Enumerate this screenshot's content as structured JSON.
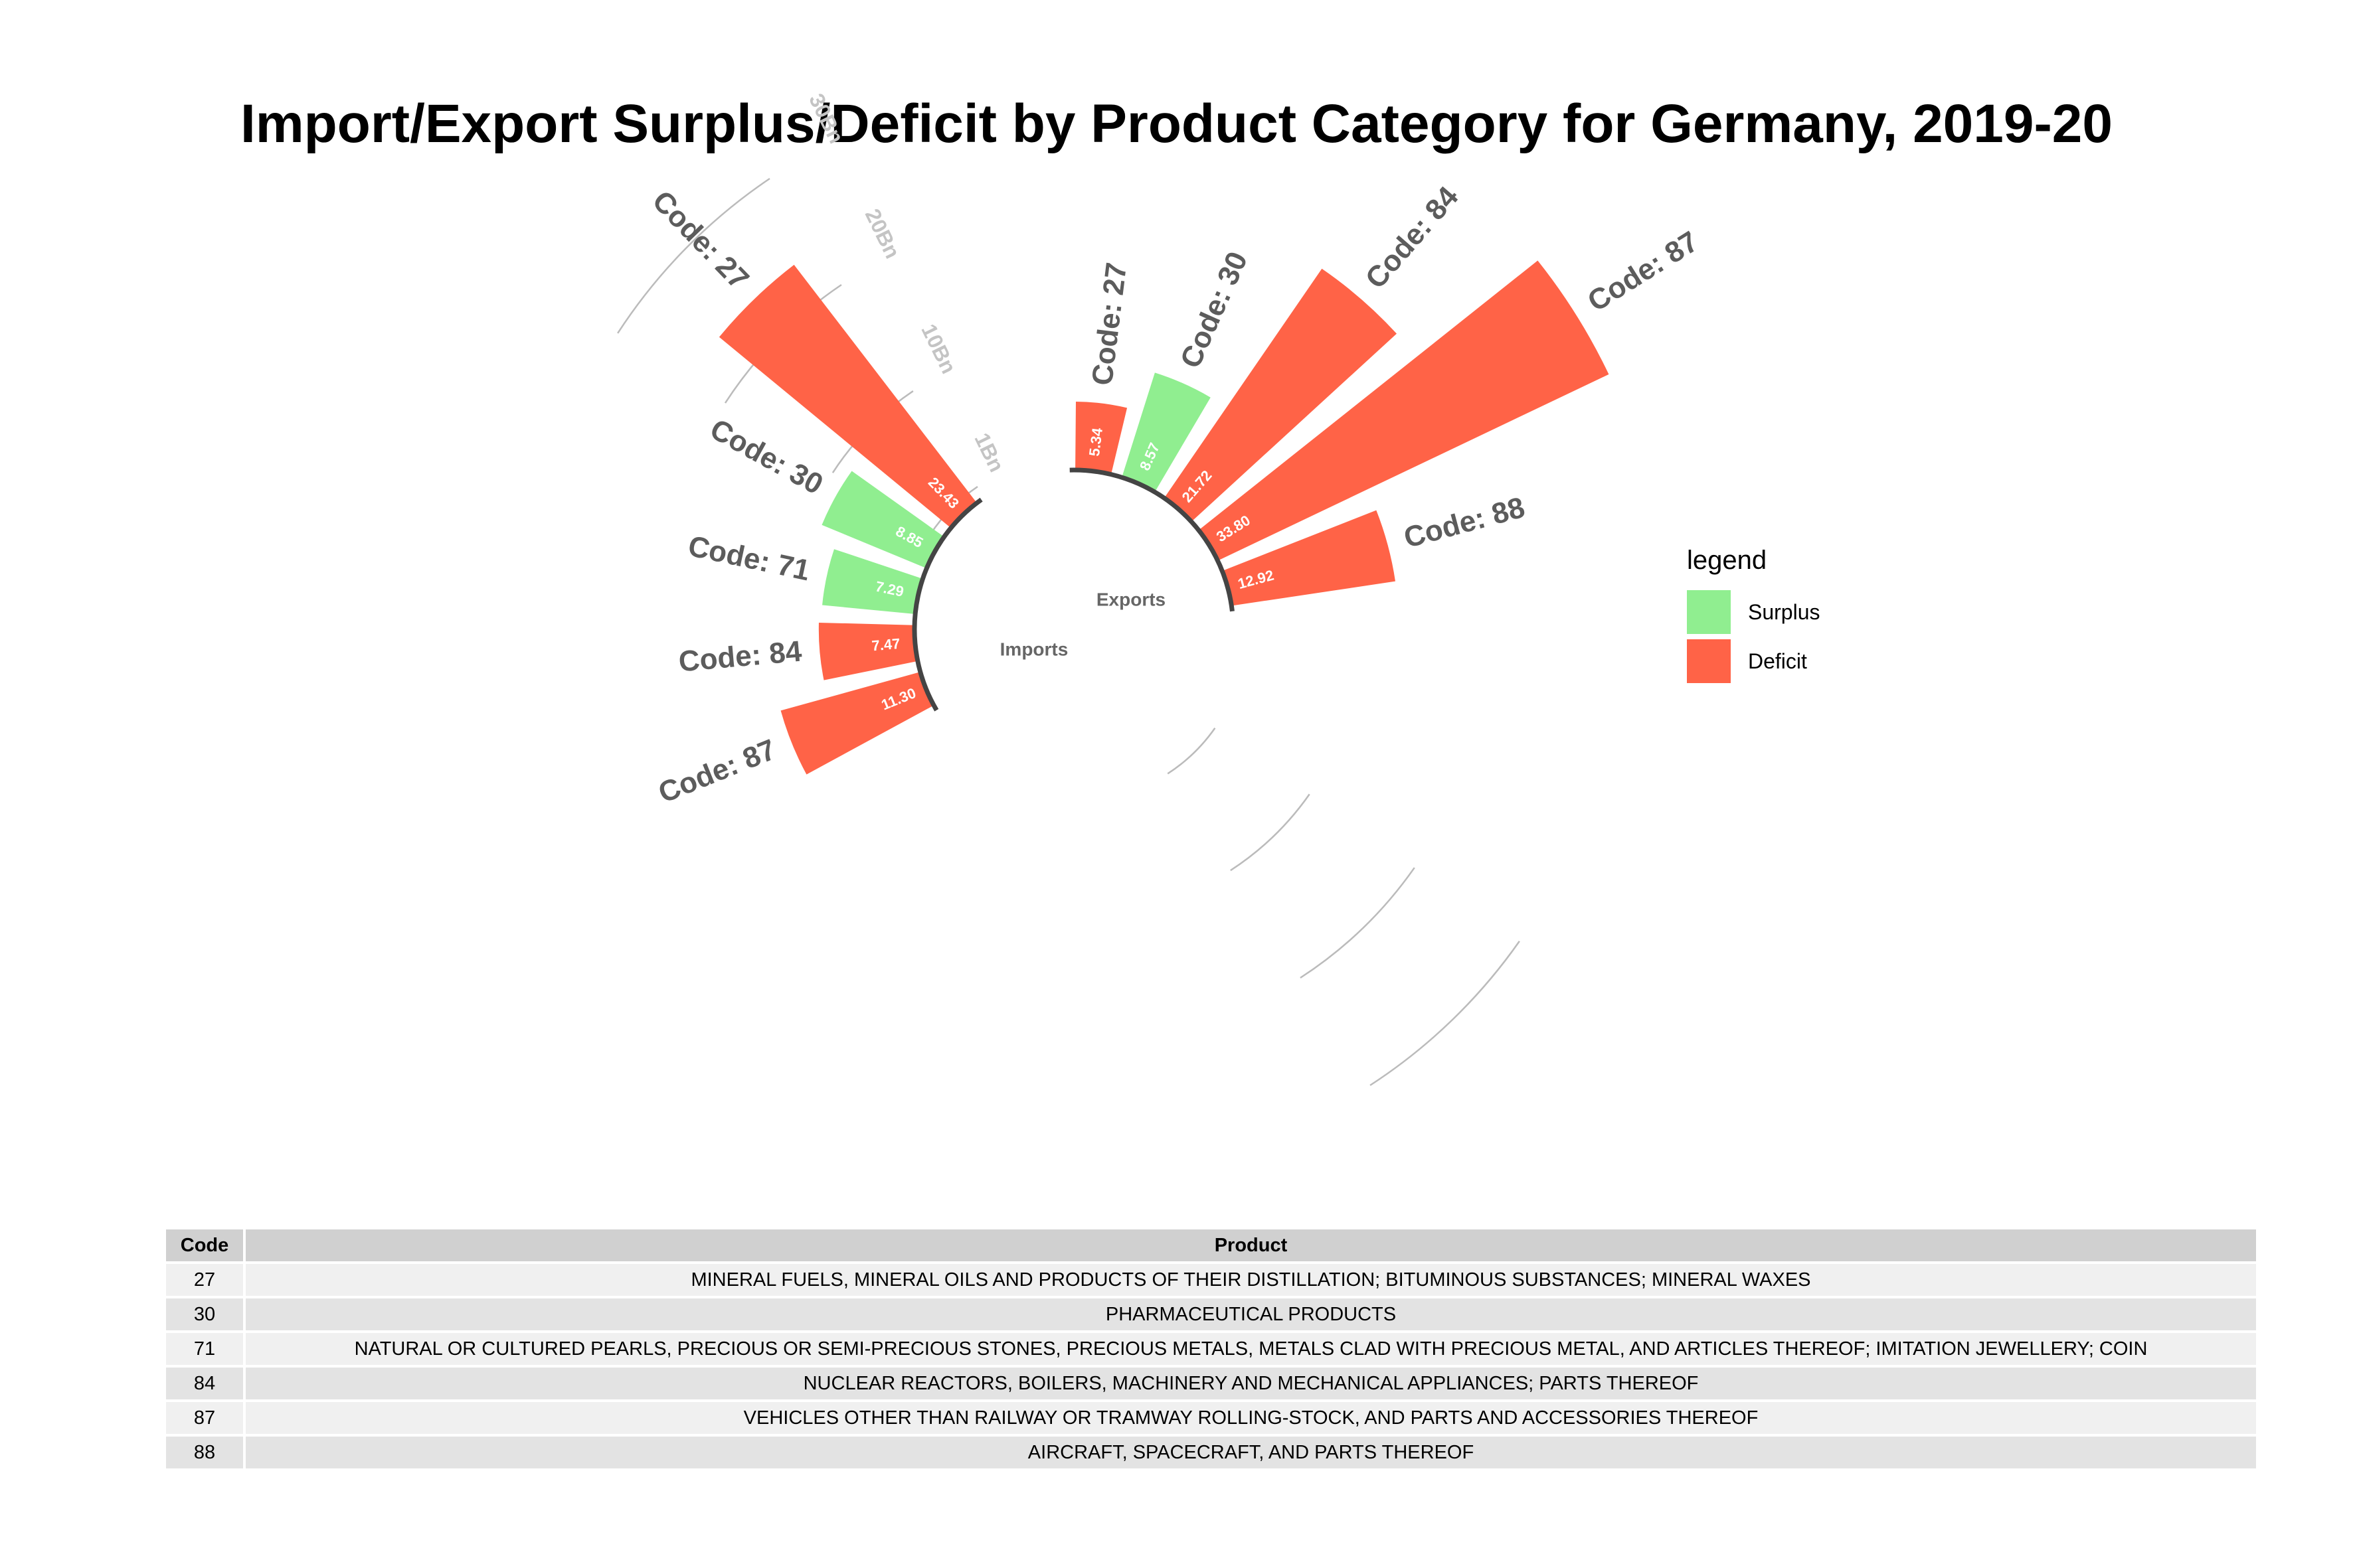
{
  "title": "Import/Export Surplus/Deficit by Product Category for Germany, 2019-20",
  "colors": {
    "Surplus": "#90EE90",
    "Deficit": "#FF6347",
    "grid": "#bbbbbb",
    "gridText": "#c4c4c4",
    "label": "#5c5c5c"
  },
  "legend": {
    "title": "legend",
    "items": [
      "Surplus",
      "Deficit"
    ]
  },
  "chart_data": {
    "type": "bar",
    "coordinate_system": "polar",
    "unit": "Bn",
    "radial_ticks": [
      "1Bn",
      "10Bn",
      "20Bn",
      "30Bn"
    ],
    "groups": [
      {
        "name": "Imports",
        "bars": [
          {
            "code": "Code: 87",
            "value": 11.3,
            "label": "11.30",
            "status": "Deficit"
          },
          {
            "code": "Code: 84",
            "value": 7.47,
            "label": "7.47",
            "status": "Deficit"
          },
          {
            "code": "Code: 71",
            "value": 7.29,
            "label": "7.29",
            "status": "Surplus"
          },
          {
            "code": "Code: 30",
            "value": 8.85,
            "label": "8.85",
            "status": "Surplus"
          },
          {
            "code": "Code: 27",
            "value": 23.43,
            "label": "23.43",
            "status": "Deficit"
          }
        ]
      },
      {
        "name": "Exports",
        "bars": [
          {
            "code": "Code: 27",
            "value": 5.34,
            "label": "5.34",
            "status": "Deficit"
          },
          {
            "code": "Code: 30",
            "value": 8.57,
            "label": "8.57",
            "status": "Surplus"
          },
          {
            "code": "Code: 84",
            "value": 21.72,
            "label": "21.72",
            "status": "Deficit"
          },
          {
            "code": "Code: 87",
            "value": 33.8,
            "label": "33.80",
            "status": "Deficit"
          },
          {
            "code": "Code: 88",
            "value": 12.92,
            "label": "12.92",
            "status": "Deficit"
          }
        ]
      }
    ]
  },
  "table": {
    "headers": [
      "Code",
      "Product"
    ],
    "rows": [
      {
        "code": "27",
        "product": "MINERAL FUELS, MINERAL OILS AND PRODUCTS OF THEIR DISTILLATION; BITUMINOUS SUBSTANCES; MINERAL WAXES"
      },
      {
        "code": "30",
        "product": "PHARMACEUTICAL PRODUCTS"
      },
      {
        "code": "71",
        "product": "NATURAL OR CULTURED PEARLS, PRECIOUS OR SEMI-PRECIOUS STONES, PRECIOUS METALS, METALS CLAD WITH PRECIOUS METAL, AND ARTICLES THEREOF; IMITATION JEWELLERY; COIN"
      },
      {
        "code": "84",
        "product": "NUCLEAR REACTORS, BOILERS, MACHINERY AND MECHANICAL APPLIANCES; PARTS THEREOF"
      },
      {
        "code": "87",
        "product": "VEHICLES OTHER THAN RAILWAY OR TRAMWAY ROLLING-STOCK, AND PARTS AND ACCESSORIES THEREOF"
      },
      {
        "code": "88",
        "product": "AIRCRAFT, SPACECRAFT, AND PARTS THEREOF"
      }
    ]
  }
}
